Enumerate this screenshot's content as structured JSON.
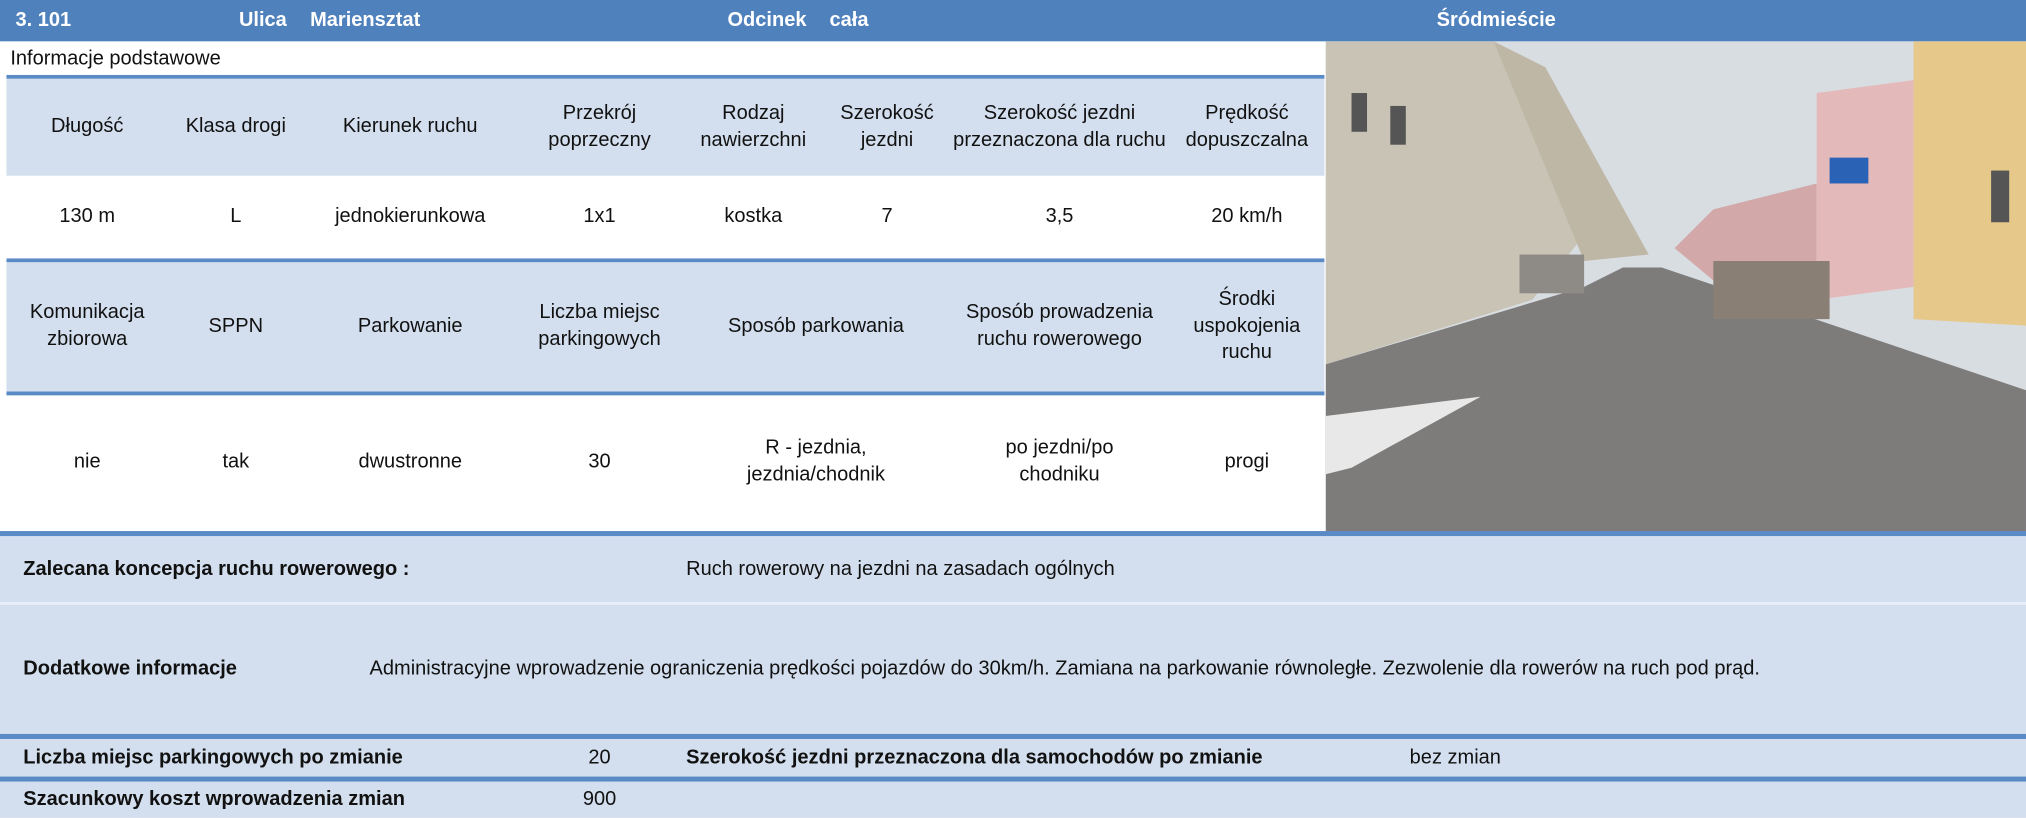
{
  "header": {
    "number": "3. 101",
    "street_label": "Ulica",
    "street": "Mariensztat",
    "section_label": "Odcinek",
    "section": "cała",
    "district": "Śródmieście"
  },
  "section_title": "Informacje podstawowe",
  "table1": {
    "headers": [
      "Długość",
      "Klasa drogi",
      "Kierunek ruchu",
      "Przekrój poprzeczny",
      "Rodzaj nawierzchni",
      "Szerokość jezdni",
      "Szerokość jezdni przeznaczona dla ruchu",
      "Prędkość dopuszczalna"
    ],
    "values": [
      "130 m",
      "L",
      "jednokierunkowa",
      "1x1",
      "kostka",
      "7",
      "3,5",
      "20 km/h"
    ]
  },
  "table2": {
    "headers": [
      "Komunikacja zbiorowa",
      "SPPN",
      "Parkowanie",
      "Liczba miejsc parkingowych",
      "Sposób parkowania",
      "Sposób prowadzenia ruchu rowerowego",
      "Środki uspokojenia ruchu"
    ],
    "values": [
      "nie",
      "tak",
      "dwustronne",
      "30",
      "R - jezdnia, jezdnia/chodnik",
      "po jezdni/po chodniku",
      "progi"
    ]
  },
  "recommendation": {
    "label": "Zalecana koncepcja ruchu rowerowego :",
    "value": "Ruch rowerowy na jezdni na zasadach ogólnych"
  },
  "additional": {
    "label": "Dodatkowe informacje",
    "value": "Administracyjne wprowadzenie ograniczenia prędkości pojazdów do 30km/h. Zamiana na parkowanie równoległe. Zezwolenie dla rowerów na ruch pod prąd."
  },
  "parking_after": {
    "label": "Liczba miejsc parkingowych po zmianie",
    "value": "20"
  },
  "width_after": {
    "label": "Szerokość jezdni przeznaczona dla samochodów po zmianie",
    "value": "bez zmian"
  },
  "cost": {
    "label": "Szacunkowy koszt wprowadzenia zmian",
    "value": "900"
  }
}
